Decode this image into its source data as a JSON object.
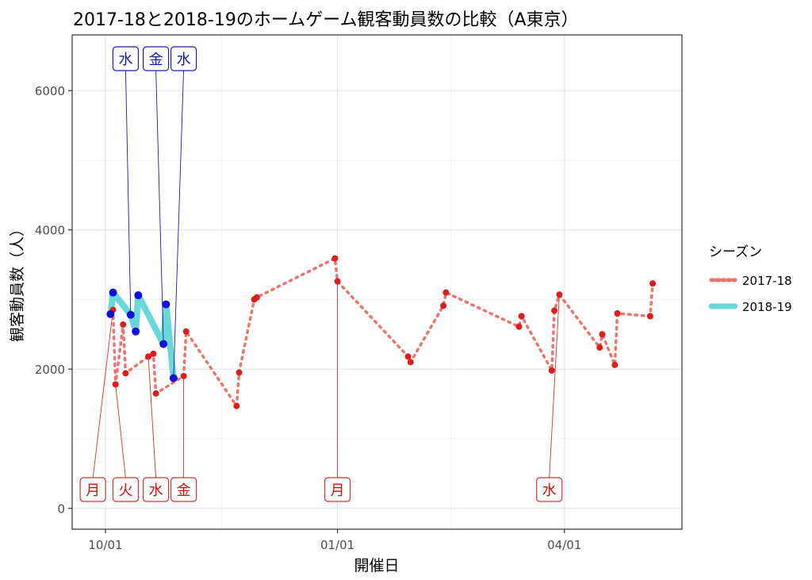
{
  "chart_data": {
    "type": "line",
    "title": "2017-18と2018-19のホームゲーム観客動員数の比較（A東京）",
    "xlabel": "開催日",
    "ylabel": "観客動員数（人）",
    "x_ticks": [
      "10/01",
      "01/01",
      "04/01"
    ],
    "y_ticks": [
      0,
      2000,
      4000,
      6000
    ],
    "ylim": [
      -300,
      6800
    ],
    "legend": {
      "title": "シーズン",
      "placement": "right"
    },
    "grid": true,
    "series": [
      {
        "name": "2017-18",
        "color": "#e8766d",
        "style": "dotted",
        "point_color": "#dd1c1c",
        "points": [
          {
            "date": "10/04",
            "value": 2850
          },
          {
            "date": "10/05",
            "value": 1780
          },
          {
            "date": "10/08",
            "value": 2640
          },
          {
            "date": "10/09",
            "value": 1940
          },
          {
            "date": "10/18",
            "value": 2180
          },
          {
            "date": "10/20",
            "value": 2220
          },
          {
            "date": "10/21",
            "value": 1650
          },
          {
            "date": "11/01",
            "value": 1900
          },
          {
            "date": "11/02",
            "value": 2540
          },
          {
            "date": "11/22",
            "value": 1470
          },
          {
            "date": "11/23",
            "value": 1950
          },
          {
            "date": "11/29",
            "value": 3000
          },
          {
            "date": "11/30",
            "value": 3030
          },
          {
            "date": "12/31",
            "value": 3590
          },
          {
            "date": "01/01",
            "value": 3260
          },
          {
            "date": "01/29",
            "value": 2180
          },
          {
            "date": "01/30",
            "value": 2100
          },
          {
            "date": "02/12",
            "value": 2910
          },
          {
            "date": "02/13",
            "value": 3100
          },
          {
            "date": "03/14",
            "value": 2610
          },
          {
            "date": "03/15",
            "value": 2760
          },
          {
            "date": "03/27",
            "value": 1980
          },
          {
            "date": "03/28",
            "value": 2840
          },
          {
            "date": "03/30",
            "value": 3070
          },
          {
            "date": "04/15",
            "value": 2310
          },
          {
            "date": "04/16",
            "value": 2500
          },
          {
            "date": "04/21",
            "value": 2060
          },
          {
            "date": "04/22",
            "value": 2800
          },
          {
            "date": "05/05",
            "value": 2760
          },
          {
            "date": "05/06",
            "value": 3230
          }
        ]
      },
      {
        "name": "2018-19",
        "color": "#6ad7db",
        "style": "solid",
        "point_color": "#1212d6",
        "points": [
          {
            "date": "10/03",
            "value": 2790
          },
          {
            "date": "10/04",
            "value": 3100
          },
          {
            "date": "10/11",
            "value": 2780
          },
          {
            "date": "10/13",
            "value": 2540
          },
          {
            "date": "10/14",
            "value": 3060
          },
          {
            "date": "10/24",
            "value": 2360
          },
          {
            "date": "10/25",
            "value": 2930
          },
          {
            "date": "10/28",
            "value": 1870
          }
        ]
      }
    ],
    "annotations": [
      {
        "label": "月",
        "season": "2017-18",
        "date": "10/04",
        "value": 2850,
        "label_date": "09/26",
        "position": "bottom"
      },
      {
        "label": "火",
        "season": "2017-18",
        "date": "10/05",
        "value": 1780,
        "label_date": "10/09",
        "position": "bottom"
      },
      {
        "label": "水",
        "season": "2017-18",
        "date": "10/18",
        "value": 2180,
        "label_date": "10/21",
        "position": "bottom"
      },
      {
        "label": "金",
        "season": "2017-18",
        "date": "11/01",
        "value": 1900,
        "label_date": "11/01",
        "position": "bottom"
      },
      {
        "label": "月",
        "season": "2017-18",
        "date": "01/01",
        "value": 3260,
        "label_date": "01/01",
        "position": "bottom"
      },
      {
        "label": "水",
        "season": "2017-18",
        "date": "03/30",
        "value": 3070,
        "label_date": "03/26",
        "position": "bottom"
      },
      {
        "label": "水",
        "season": "2018-19",
        "date": "10/11",
        "value": 2780,
        "label_date": "10/09",
        "position": "top"
      },
      {
        "label": "金",
        "season": "2018-19",
        "date": "10/24",
        "value": 2360,
        "label_date": "10/21",
        "position": "top"
      },
      {
        "label": "水",
        "season": "2018-19",
        "date": "10/28",
        "value": 1870,
        "label_date": "11/01",
        "position": "top"
      }
    ]
  }
}
